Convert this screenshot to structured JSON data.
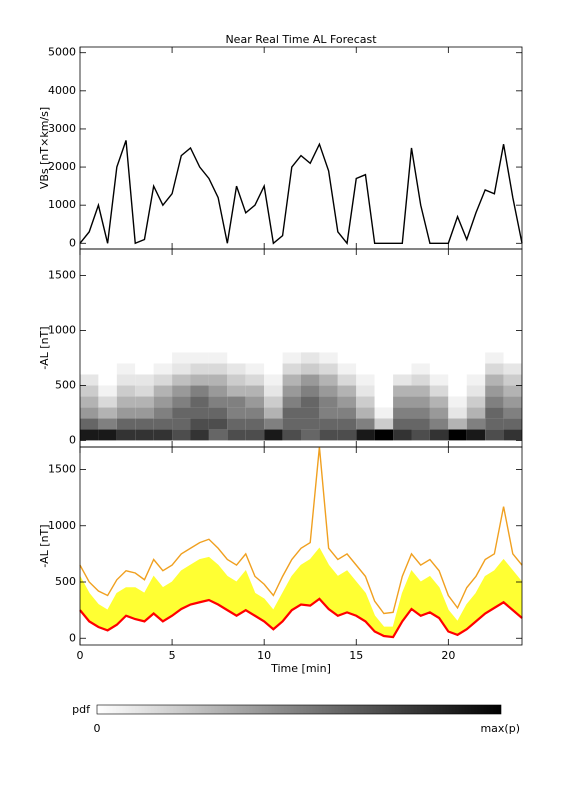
{
  "chart_data": [
    {
      "type": "line",
      "title": "Near Real Time AL Forecast",
      "y_label": "VBs [nT×km/s]",
      "color": "#000000",
      "x": [
        0,
        0.5,
        1,
        1.5,
        2,
        2.5,
        3,
        3.5,
        4,
        4.5,
        5,
        5.5,
        6,
        6.5,
        7,
        7.5,
        8,
        8.5,
        9,
        9.5,
        10,
        10.5,
        11,
        11.5,
        12,
        12.5,
        13,
        13.5,
        14,
        14.5,
        15,
        15.5,
        16,
        16.5,
        17,
        17.5,
        18,
        18.5,
        19,
        19.5,
        20,
        20.5,
        21,
        21.5,
        22,
        22.5,
        23,
        23.5,
        24
      ],
      "values": [
        0,
        300,
        1000,
        0,
        2000,
        2700,
        0,
        100,
        1500,
        1000,
        1300,
        2300,
        2500,
        2000,
        1700,
        1200,
        0,
        1500,
        800,
        1000,
        1500,
        0,
        200,
        2000,
        2300,
        2100,
        2600,
        1900,
        300,
        0,
        1700,
        1800,
        0,
        0,
        0,
        0,
        2500,
        1000,
        0,
        0,
        0,
        700,
        100,
        800,
        1400,
        1300,
        2600,
        1200,
        0
      ],
      "xlim": [
        0,
        24
      ],
      "xticks": [
        0,
        5,
        10,
        15,
        20
      ],
      "ylim": [
        -150,
        5150
      ],
      "yticks": [
        0,
        1000,
        2000,
        3000,
        4000,
        5000
      ]
    },
    {
      "type": "heatmap",
      "y_label": "-AL [nT]",
      "x_bins": [
        0,
        1,
        2,
        3,
        4,
        5,
        6,
        7,
        8,
        9,
        10,
        11,
        12,
        13,
        14,
        15,
        16,
        17,
        18,
        19,
        20,
        21,
        22,
        23,
        24
      ],
      "y_bins": [
        0,
        100,
        200,
        300,
        400,
        500,
        600,
        700,
        800
      ],
      "z": [
        [
          0.9,
          0.6,
          0.4,
          0.3,
          0.2,
          0.1,
          0,
          0
        ],
        [
          0.9,
          0.5,
          0.3,
          0.15,
          0.05,
          0,
          0,
          0
        ],
        [
          0.8,
          0.6,
          0.4,
          0.3,
          0.2,
          0.1,
          0.05,
          0
        ],
        [
          0.8,
          0.6,
          0.4,
          0.3,
          0.15,
          0.1,
          0,
          0
        ],
        [
          0.8,
          0.6,
          0.5,
          0.4,
          0.3,
          0.15,
          0.05,
          0
        ],
        [
          0.7,
          0.6,
          0.6,
          0.5,
          0.4,
          0.25,
          0.1,
          0.05
        ],
        [
          0.8,
          0.7,
          0.6,
          0.6,
          0.5,
          0.3,
          0.15,
          0.05
        ],
        [
          0.6,
          0.7,
          0.6,
          0.5,
          0.4,
          0.3,
          0.15,
          0.05
        ],
        [
          0.7,
          0.6,
          0.5,
          0.5,
          0.3,
          0.2,
          0.1,
          0
        ],
        [
          0.7,
          0.6,
          0.5,
          0.4,
          0.3,
          0.15,
          0.05,
          0
        ],
        [
          0.9,
          0.5,
          0.3,
          0.2,
          0.1,
          0.05,
          0,
          0
        ],
        [
          0.7,
          0.6,
          0.6,
          0.5,
          0.4,
          0.3,
          0.15,
          0.05
        ],
        [
          0.6,
          0.6,
          0.6,
          0.6,
          0.5,
          0.4,
          0.2,
          0.1
        ],
        [
          0.7,
          0.6,
          0.5,
          0.5,
          0.4,
          0.3,
          0.15,
          0.05
        ],
        [
          0.7,
          0.6,
          0.5,
          0.4,
          0.3,
          0.15,
          0.05,
          0
        ],
        [
          0.9,
          0.5,
          0.3,
          0.2,
          0.1,
          0.05,
          0,
          0
        ],
        [
          1,
          0.2,
          0.05,
          0,
          0,
          0,
          0,
          0
        ],
        [
          0.8,
          0.6,
          0.5,
          0.4,
          0.3,
          0.1,
          0,
          0
        ],
        [
          0.7,
          0.6,
          0.5,
          0.4,
          0.3,
          0.15,
          0.05,
          0
        ],
        [
          0.8,
          0.5,
          0.4,
          0.3,
          0.15,
          0.05,
          0,
          0
        ],
        [
          1,
          0.3,
          0.1,
          0.05,
          0,
          0,
          0,
          0
        ],
        [
          0.9,
          0.5,
          0.3,
          0.2,
          0.1,
          0.05,
          0,
          0
        ],
        [
          0.7,
          0.6,
          0.6,
          0.5,
          0.4,
          0.3,
          0.15,
          0.05
        ],
        [
          0.8,
          0.6,
          0.5,
          0.4,
          0.3,
          0.2,
          0.1,
          0
        ]
      ],
      "xlim": [
        0,
        24
      ],
      "xticks": [
        0,
        5,
        10,
        15,
        20
      ],
      "ylim": [
        -60,
        1740
      ],
      "yticks": [
        0,
        500,
        1000,
        1500
      ]
    },
    {
      "type": "line",
      "y_label": "-AL [nT]",
      "x_label": "Time [min]",
      "x": [
        0,
        0.5,
        1,
        1.5,
        2,
        2.5,
        3,
        3.5,
        4,
        4.5,
        5,
        5.5,
        6,
        6.5,
        7,
        7.5,
        8,
        8.5,
        9,
        9.5,
        10,
        10.5,
        11,
        11.5,
        12,
        12.5,
        13,
        13.5,
        14,
        14.5,
        15,
        15.5,
        16,
        16.5,
        17,
        17.5,
        18,
        18.5,
        19,
        19.5,
        20,
        20.5,
        21,
        21.5,
        22,
        22.5,
        23,
        23.5,
        24
      ],
      "series": [
        {
          "color": "#f0a020",
          "values": [
            650,
            500,
            420,
            380,
            520,
            600,
            580,
            520,
            700,
            600,
            650,
            750,
            800,
            850,
            880,
            800,
            700,
            650,
            750,
            550,
            480,
            380,
            550,
            700,
            800,
            850,
            1700,
            800,
            700,
            750,
            650,
            550,
            330,
            220,
            230,
            550,
            750,
            650,
            700,
            600,
            380,
            270,
            450,
            550,
            700,
            750,
            1170,
            750,
            650
          ]
        },
        {
          "color": "#ffff33",
          "fill": "#ffff33",
          "values": [
            550,
            400,
            300,
            250,
            400,
            450,
            450,
            400,
            550,
            450,
            500,
            600,
            650,
            700,
            720,
            650,
            550,
            500,
            600,
            400,
            350,
            250,
            400,
            550,
            650,
            700,
            800,
            650,
            550,
            600,
            500,
            400,
            200,
            100,
            100,
            400,
            600,
            500,
            550,
            450,
            250,
            150,
            300,
            400,
            550,
            600,
            700,
            600,
            500
          ]
        },
        {
          "color": "#ff0000",
          "values": [
            250,
            150,
            100,
            70,
            120,
            200,
            170,
            150,
            220,
            150,
            200,
            260,
            300,
            320,
            340,
            300,
            250,
            200,
            250,
            200,
            150,
            80,
            150,
            250,
            300,
            290,
            350,
            260,
            200,
            230,
            200,
            150,
            60,
            20,
            10,
            150,
            260,
            200,
            230,
            180,
            60,
            30,
            80,
            150,
            220,
            270,
            320,
            250,
            180
          ]
        }
      ],
      "xlim": [
        0,
        24
      ],
      "xticks": [
        0,
        5,
        10,
        15,
        20
      ],
      "ylim": [
        -60,
        1700
      ],
      "yticks": [
        0,
        500,
        1000,
        1500
      ]
    }
  ],
  "colorbar": {
    "label": "pdf",
    "min_label": "0",
    "max_label": "max(p)"
  }
}
